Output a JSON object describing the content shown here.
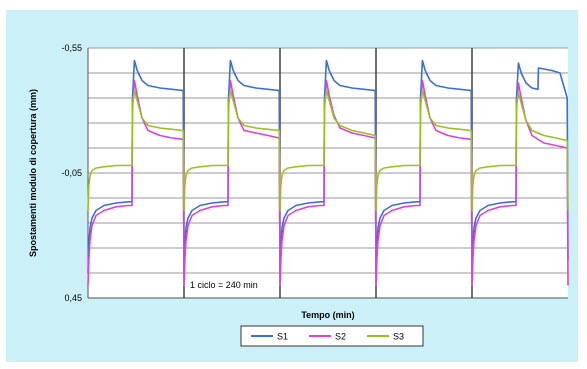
{
  "chart_data": {
    "type": "line",
    "xlabel": "Tempo (min)",
    "ylabel": "Spostamenti modulo di copertura (mm)",
    "y_ticks": [
      "-0,55",
      "-0,05",
      "0,45"
    ],
    "y_tick_values": [
      -0.55,
      -0.05,
      0.45
    ],
    "ylim": [
      -0.55,
      0.45
    ],
    "y_inverted": true,
    "xlim": [
      0,
      1200
    ],
    "grid": true,
    "legend_position": "bottom",
    "annotation": "1 ciclo = 240 min",
    "series": [
      {
        "name": "S1",
        "color": "#3a6fd8",
        "x": [
          0,
          2,
          5,
          10,
          20,
          40,
          70,
          100,
          110,
          111,
          116,
          123,
          135,
          150,
          180,
          210,
          238,
          240,
          242,
          245,
          250,
          260,
          280,
          310,
          340,
          350,
          351,
          356,
          363,
          375,
          390,
          420,
          450,
          478,
          480,
          482,
          485,
          490,
          500,
          520,
          550,
          580,
          590,
          591,
          596,
          603,
          615,
          630,
          660,
          690,
          718,
          720,
          722,
          725,
          730,
          740,
          760,
          790,
          820,
          830,
          831,
          836,
          843,
          855,
          870,
          900,
          930,
          958,
          960,
          962,
          965,
          970,
          980,
          1000,
          1030,
          1060,
          1070,
          1071,
          1076,
          1083,
          1095,
          1110,
          1125,
          1126,
          1160,
          1180,
          1198,
          1200
        ],
        "y": [
          0.35,
          0.24,
          0.17,
          0.13,
          0.1,
          0.08,
          0.07,
          0.065,
          0.065,
          -0.34,
          -0.5,
          -0.46,
          -0.42,
          -0.4,
          -0.39,
          -0.385,
          -0.38,
          0.35,
          0.24,
          0.17,
          0.13,
          0.1,
          0.08,
          0.07,
          0.065,
          0.065,
          -0.34,
          -0.5,
          -0.46,
          -0.42,
          -0.4,
          -0.39,
          -0.385,
          -0.38,
          0.35,
          0.24,
          0.17,
          0.13,
          0.1,
          0.08,
          0.07,
          0.065,
          0.065,
          -0.34,
          -0.5,
          -0.46,
          -0.42,
          -0.4,
          -0.39,
          -0.385,
          -0.38,
          0.35,
          0.24,
          0.17,
          0.13,
          0.1,
          0.08,
          0.07,
          0.065,
          0.065,
          -0.34,
          -0.5,
          -0.46,
          -0.42,
          -0.4,
          -0.39,
          -0.385,
          -0.38,
          0.35,
          0.24,
          0.17,
          0.13,
          0.1,
          0.08,
          0.07,
          0.065,
          0.065,
          -0.34,
          -0.49,
          -0.45,
          -0.41,
          -0.39,
          -0.385,
          -0.47,
          -0.46,
          -0.45,
          -0.35,
          0.3
        ]
      },
      {
        "name": "S2",
        "color": "#e040d8",
        "x": [
          0,
          2,
          5,
          10,
          20,
          40,
          70,
          100,
          110,
          111,
          116,
          123,
          135,
          150,
          180,
          210,
          238,
          240,
          242,
          245,
          250,
          260,
          280,
          310,
          340,
          350,
          351,
          356,
          363,
          375,
          390,
          420,
          450,
          478,
          480,
          482,
          485,
          490,
          500,
          520,
          550,
          580,
          590,
          591,
          596,
          603,
          615,
          630,
          660,
          690,
          718,
          720,
          722,
          725,
          730,
          740,
          760,
          790,
          820,
          830,
          831,
          836,
          843,
          855,
          870,
          900,
          930,
          958,
          960,
          962,
          965,
          970,
          980,
          1000,
          1030,
          1060,
          1070,
          1071,
          1076,
          1083,
          1095,
          1110,
          1140,
          1170,
          1198,
          1200
        ],
        "y": [
          0.4,
          0.3,
          0.22,
          0.16,
          0.12,
          0.1,
          0.085,
          0.08,
          0.08,
          -0.3,
          -0.42,
          -0.36,
          -0.27,
          -0.22,
          -0.2,
          -0.19,
          -0.185,
          0.4,
          0.3,
          0.22,
          0.16,
          0.12,
          0.1,
          0.085,
          0.08,
          0.08,
          -0.3,
          -0.42,
          -0.36,
          -0.27,
          -0.22,
          -0.21,
          -0.2,
          -0.19,
          0.4,
          0.3,
          0.22,
          0.16,
          0.12,
          0.1,
          0.085,
          0.08,
          0.08,
          -0.3,
          -0.42,
          -0.36,
          -0.28,
          -0.23,
          -0.21,
          -0.2,
          -0.19,
          0.4,
          0.3,
          0.22,
          0.16,
          0.12,
          0.1,
          0.085,
          0.08,
          0.08,
          -0.3,
          -0.42,
          -0.36,
          -0.27,
          -0.22,
          -0.2,
          -0.19,
          -0.185,
          0.4,
          0.3,
          0.22,
          0.16,
          0.12,
          0.1,
          0.085,
          0.08,
          0.08,
          -0.3,
          -0.41,
          -0.35,
          -0.26,
          -0.2,
          -0.17,
          -0.16,
          -0.15,
          0.4
        ]
      },
      {
        "name": "S3",
        "color": "#9ac11a",
        "x": [
          0,
          2,
          5,
          10,
          20,
          40,
          70,
          100,
          110,
          111,
          116,
          123,
          135,
          150,
          180,
          210,
          238,
          240,
          242,
          245,
          250,
          260,
          280,
          310,
          340,
          350,
          351,
          356,
          363,
          375,
          390,
          420,
          450,
          478,
          480,
          482,
          485,
          490,
          500,
          520,
          550,
          580,
          590,
          591,
          596,
          603,
          615,
          630,
          660,
          690,
          718,
          720,
          722,
          725,
          730,
          740,
          760,
          790,
          820,
          830,
          831,
          836,
          843,
          855,
          870,
          900,
          930,
          958,
          960,
          962,
          965,
          970,
          980,
          1000,
          1030,
          1060,
          1070,
          1071,
          1076,
          1083,
          1095,
          1110,
          1140,
          1170,
          1198,
          1200
        ],
        "y": [
          0.1,
          0.0,
          -0.04,
          -0.06,
          -0.07,
          -0.075,
          -0.08,
          -0.08,
          -0.08,
          -0.32,
          -0.38,
          -0.34,
          -0.27,
          -0.24,
          -0.23,
          -0.225,
          -0.22,
          0.1,
          0.0,
          -0.04,
          -0.06,
          -0.07,
          -0.075,
          -0.08,
          -0.08,
          -0.08,
          -0.32,
          -0.38,
          -0.34,
          -0.27,
          -0.24,
          -0.23,
          -0.225,
          -0.22,
          0.1,
          0.0,
          -0.04,
          -0.06,
          -0.07,
          -0.075,
          -0.08,
          -0.08,
          -0.08,
          -0.32,
          -0.38,
          -0.34,
          -0.27,
          -0.24,
          -0.22,
          -0.21,
          -0.2,
          0.1,
          0.0,
          -0.04,
          -0.06,
          -0.07,
          -0.075,
          -0.08,
          -0.08,
          -0.08,
          -0.32,
          -0.38,
          -0.34,
          -0.27,
          -0.24,
          -0.23,
          -0.225,
          -0.22,
          0.1,
          0.0,
          -0.04,
          -0.06,
          -0.07,
          -0.075,
          -0.08,
          -0.08,
          -0.08,
          -0.32,
          -0.37,
          -0.33,
          -0.26,
          -0.22,
          -0.2,
          -0.19,
          -0.18,
          0.1
        ]
      }
    ],
    "cycle_dividers_x": [
      240,
      480,
      720,
      960
    ]
  }
}
